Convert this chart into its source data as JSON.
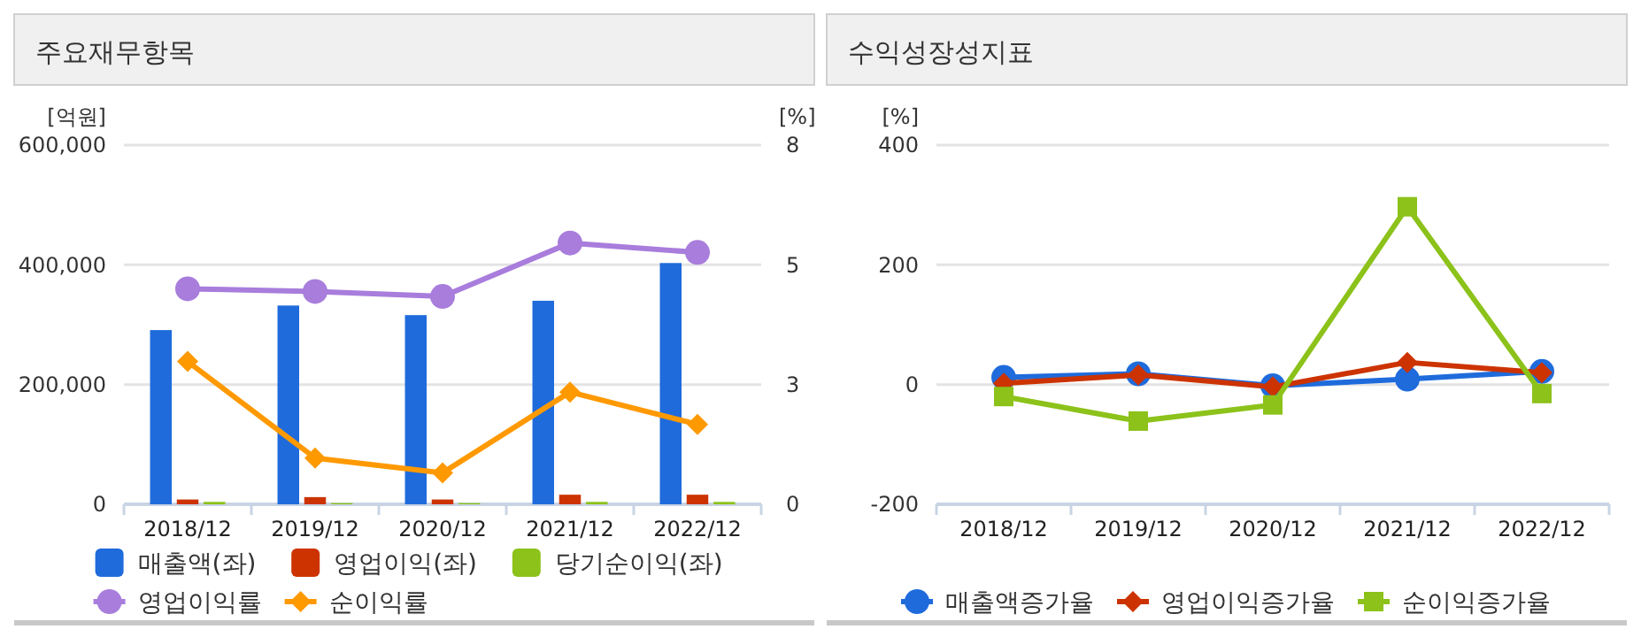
{
  "chart_data": [
    {
      "type": "bar",
      "title": "주요재무항목",
      "ylabel": "[억원]",
      "y2label": "[%]",
      "categories": [
        "2018/12",
        "2019/12",
        "2020/12",
        "2021/12",
        "2022/12"
      ],
      "ylim": [
        0,
        600000
      ],
      "yticks": [
        {
          "value": 0,
          "label": "0"
        },
        {
          "value": 200000,
          "label": "200,000"
        },
        {
          "value": 400000,
          "label": "400,000"
        },
        {
          "value": 600000,
          "label": "600,000"
        }
      ],
      "y2lim": [
        0,
        8
      ],
      "y2ticks": [
        0,
        {
          "value": 2.6667,
          "label": "3"
        },
        {
          "value": 5.3333,
          "label": "5"
        },
        8
      ],
      "grid": "y",
      "legend": "bottom",
      "series": [
        {
          "name": "매출액(좌)",
          "color": "#1f6bdc",
          "values": [
            291000,
            332000,
            316000,
            340000,
            403000
          ]
        },
        {
          "name": "영업이익(좌)",
          "color": "#cc3300",
          "values": [
            8000,
            12000,
            8000,
            16000,
            16000
          ]
        },
        {
          "name": "당기순이익(좌)",
          "color": "#8cc21a",
          "values": [
            4000,
            2000,
            2000,
            4000,
            4000
          ]
        },
        {
          "name": "영업이익률",
          "type": "line",
          "axis": "y2",
          "marker": "circle",
          "color": "#a87ddc",
          "values": [
            4.8,
            4.74,
            4.63,
            5.82,
            5.61
          ]
        },
        {
          "name": "순이익률",
          "type": "line",
          "axis": "y2",
          "marker": "diamond",
          "color": "#ff9900",
          "values": [
            3.18,
            1.03,
            0.7,
            2.5,
            1.78
          ]
        }
      ]
    },
    {
      "type": "line",
      "title": "수익성장성지표",
      "ylabel": "[%]",
      "categories": [
        "2018/12",
        "2019/12",
        "2020/12",
        "2021/12",
        "2022/12"
      ],
      "ylim": [
        -200,
        400
      ],
      "yticks": [
        -200,
        0,
        200,
        400
      ],
      "grid": "y",
      "legend": "bottom",
      "series": [
        {
          "name": "매출액증가율",
          "marker": "circle",
          "color": "#1f6bdc",
          "values": [
            12,
            18,
            -2,
            9,
            22
          ]
        },
        {
          "name": "영업이익증가율",
          "marker": "diamond",
          "color": "#cc3300",
          "values": [
            2,
            16,
            -4,
            37,
            20
          ]
        },
        {
          "name": "순이익증가율",
          "marker": "square",
          "color": "#8cc21a",
          "values": [
            -20,
            -61,
            -34,
            297,
            -15
          ]
        }
      ]
    }
  ]
}
